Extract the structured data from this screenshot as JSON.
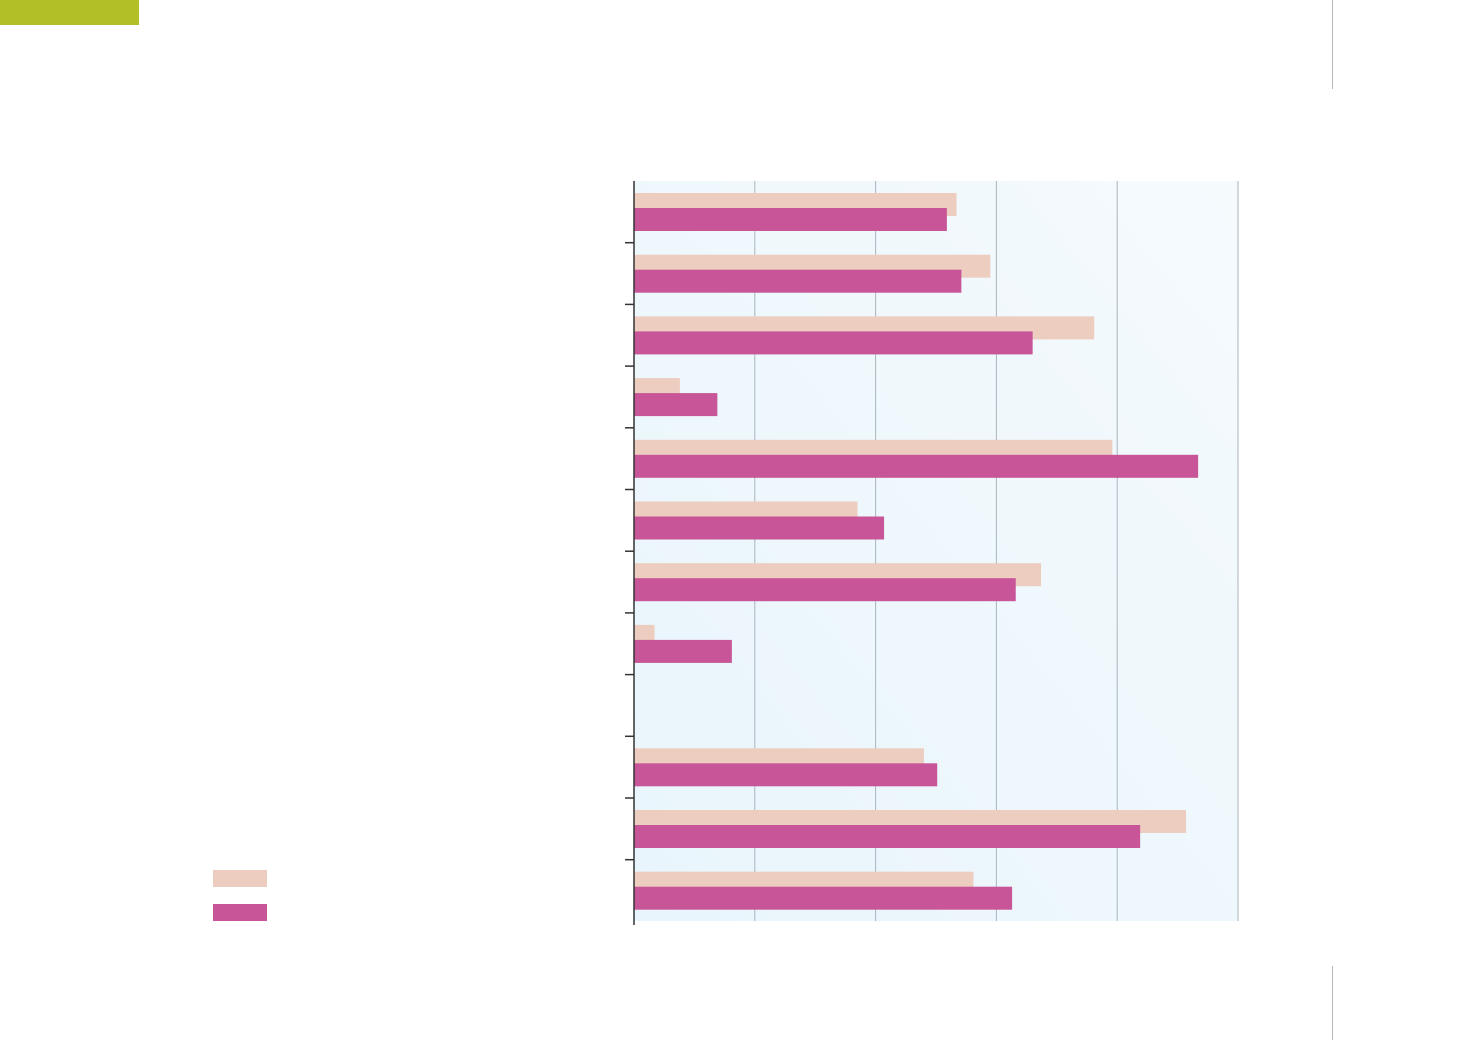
{
  "page": {
    "accent_color": "#b3bf27"
  },
  "chart_data": {
    "type": "bar",
    "orientation": "horizontal",
    "title": "",
    "xlabel": "",
    "ylabel": "",
    "categories": [
      "",
      "",
      "",
      "",
      "",
      "",
      "",
      "",
      "",
      "",
      "",
      ""
    ],
    "xlim": [
      0,
      5
    ],
    "grid": true,
    "legend_position": "bottom-left",
    "series": [
      {
        "color": "#eccdc0",
        "values": [
          2.67,
          2.95,
          3.81,
          0.38,
          3.96,
          1.85,
          3.37,
          0.17,
          null,
          2.4,
          4.57,
          2.81
        ]
      },
      {
        "color": "#c75598",
        "values": [
          2.59,
          2.71,
          3.3,
          0.69,
          4.67,
          2.07,
          3.16,
          0.81,
          null,
          2.51,
          4.19,
          3.13
        ]
      }
    ]
  }
}
